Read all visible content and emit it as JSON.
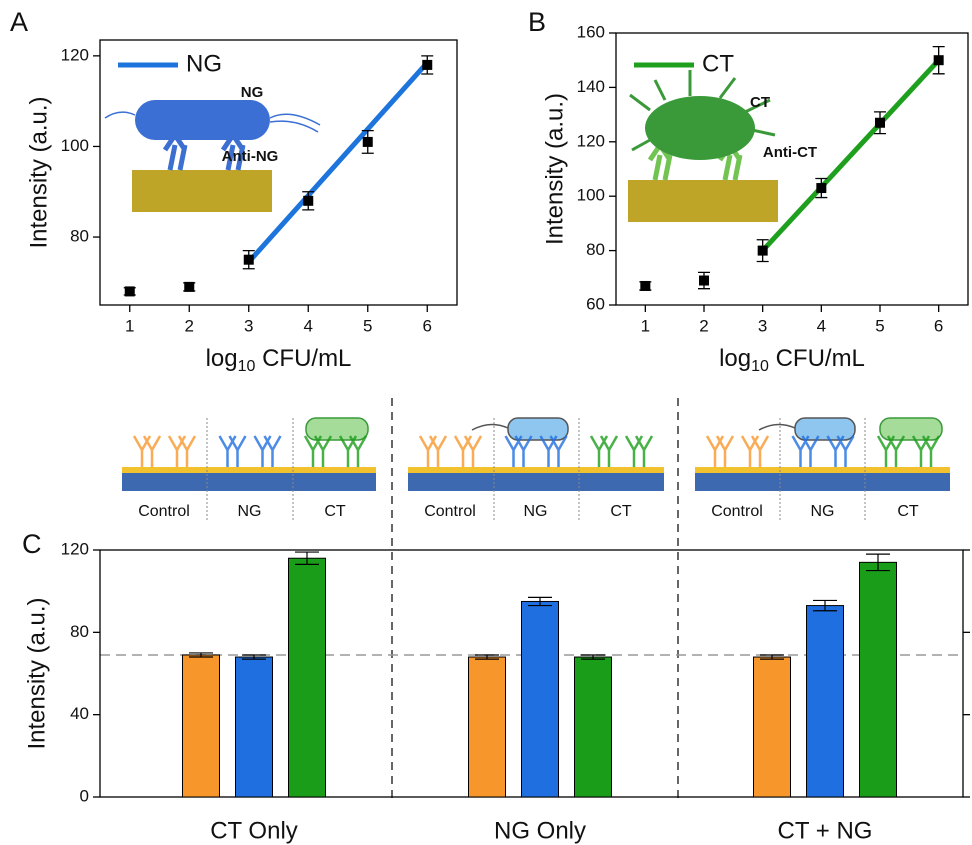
{
  "chart_data": [
    {
      "type": "scatter",
      "panel": "A",
      "ylabel": "Intensity (a.u.)",
      "xlabel": {
        "base": "log",
        "sub": "10",
        "rest": " CFU/mL"
      },
      "x": [
        1,
        2,
        3,
        4,
        5,
        6
      ],
      "xlim": [
        0.5,
        6.5
      ],
      "xticks": [
        1,
        2,
        3,
        4,
        5,
        6
      ],
      "ylim": [
        65,
        123.5
      ],
      "yticks": [
        80,
        100,
        120
      ],
      "marker_color": "#000000",
      "series": [
        {
          "name": "NG",
          "color": "#1c74dc",
          "values": [
            68,
            69,
            75,
            88,
            101,
            118
          ],
          "errors": [
            0.8,
            0.9,
            2,
            2,
            2.5,
            2
          ]
        }
      ],
      "fit": {
        "x": [
          3,
          6
        ],
        "values": [
          74.5,
          118.5
        ]
      },
      "annotations": [
        "NG",
        "Anti-NG"
      ]
    },
    {
      "type": "scatter",
      "panel": "B",
      "ylabel": "Intensity (a.u.)",
      "xlabel": {
        "base": "log",
        "sub": "10",
        "rest": " CFU/mL"
      },
      "x": [
        1,
        2,
        3,
        4,
        5,
        6
      ],
      "xlim": [
        0.5,
        6.5
      ],
      "xticks": [
        1,
        2,
        3,
        4,
        5,
        6
      ],
      "ylim": [
        60,
        160
      ],
      "yticks": [
        60,
        80,
        100,
        120,
        140,
        160
      ],
      "marker_color": "#000000",
      "series": [
        {
          "name": "CT",
          "color": "#1ea01e",
          "values": [
            67,
            69,
            80,
            103,
            127,
            150
          ],
          "errors": [
            1.5,
            3,
            4,
            3.5,
            4,
            5
          ]
        }
      ],
      "fit": {
        "x": [
          3,
          6
        ],
        "values": [
          80,
          150
        ]
      },
      "annotations": [
        "CT",
        "Anti-CT"
      ]
    },
    {
      "type": "bar",
      "panel": "C",
      "ylabel": "Intensity (a.u.)",
      "categories": [
        "CT Only",
        "NG Only",
        "CT + NG"
      ],
      "ylim": [
        0,
        120
      ],
      "yticks": [
        0,
        40,
        80,
        120
      ],
      "reference_line": 69,
      "series": [
        {
          "name": "Control",
          "color": "#f7962a",
          "values": [
            69,
            68,
            68
          ],
          "errors": [
            1,
            1,
            1
          ]
        },
        {
          "name": "NG",
          "color": "#1f6fe0",
          "values": [
            68,
            95,
            93
          ],
          "errors": [
            1,
            2,
            2.5
          ]
        },
        {
          "name": "CT",
          "color": "#1a9e1a",
          "values": [
            116,
            68,
            114
          ],
          "errors": [
            3,
            1,
            4
          ]
        }
      ]
    }
  ]
}
